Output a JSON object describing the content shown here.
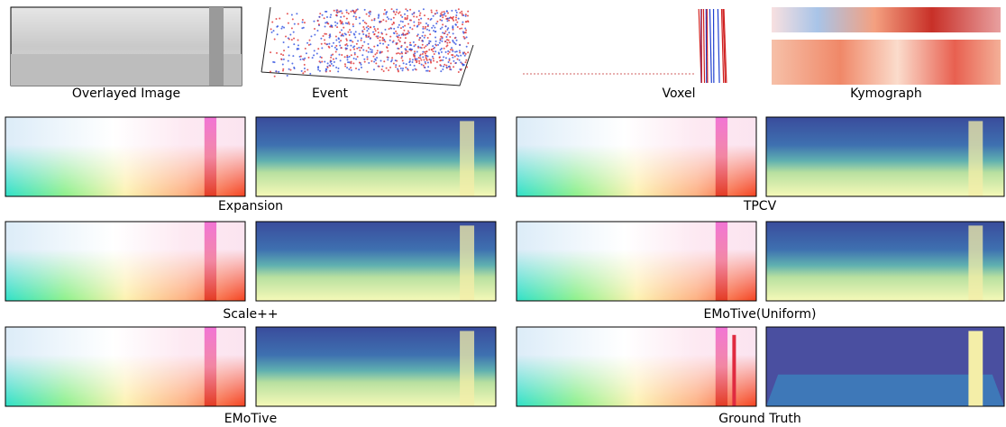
{
  "inputs": {
    "labels": [
      "Overlayed Image",
      "Event",
      "Voxel",
      "Kymograph"
    ]
  },
  "methods": {
    "labels": [
      "Expansion",
      "TPCV",
      "Scale++",
      "EMoTive(Uniform)",
      "EMoTive",
      "Ground Truth"
    ]
  }
}
